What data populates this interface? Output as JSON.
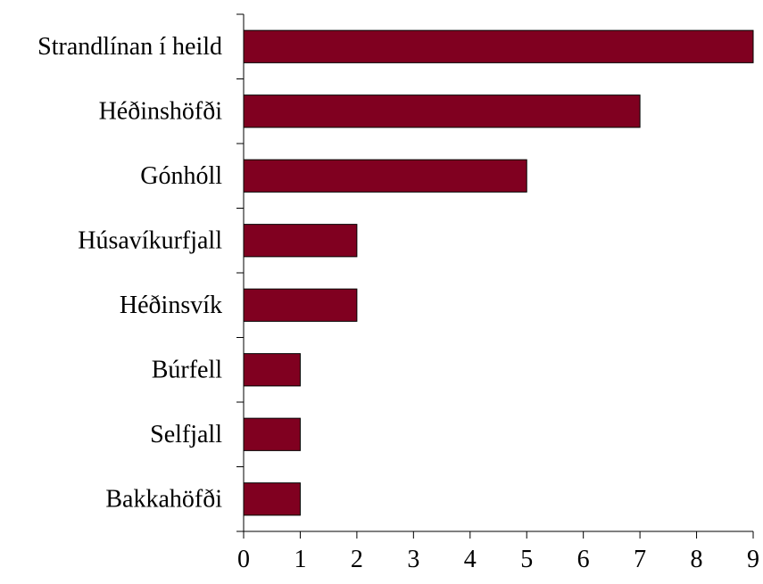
{
  "chart_data": {
    "type": "bar",
    "orientation": "horizontal",
    "categories": [
      "Strandlínan í heild",
      "Héðinshöfði",
      "Gónhóll",
      "Húsavíkurfjall",
      "Héðinsvík",
      "Búrfell",
      "Selfjall",
      "Bakkahöfði"
    ],
    "values": [
      9,
      7,
      5,
      2,
      2,
      1,
      1,
      1
    ],
    "xlim": [
      0,
      9
    ],
    "xticks": [
      "0",
      "1",
      "2",
      "3",
      "4",
      "5",
      "6",
      "7",
      "8",
      "9"
    ],
    "grid": false,
    "legend": "none",
    "bar_color": "#800020",
    "bar_edge_color": "#000000"
  }
}
